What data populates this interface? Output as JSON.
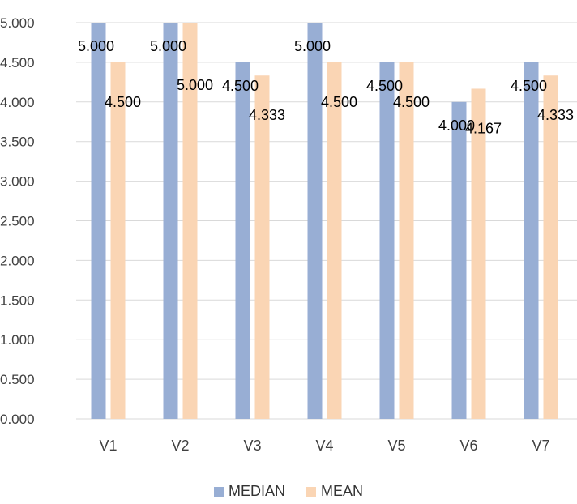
{
  "chart_data": {
    "type": "bar",
    "title": "",
    "xlabel": "",
    "ylabel": "",
    "categories": [
      "V1",
      "V2",
      "V3",
      "V4",
      "V5",
      "V6",
      "V7"
    ],
    "series": [
      {
        "name": "MEDIAN",
        "color": "#98aed4",
        "values": [
          5.0,
          5.0,
          4.5,
          5.0,
          4.5,
          4.0,
          4.5
        ],
        "labels": [
          "5.000",
          "5.000",
          "4.500",
          "5.000",
          "4.500",
          "4.000",
          "4.500"
        ]
      },
      {
        "name": "MEAN",
        "color": "#fad5b4",
        "values": [
          4.5,
          5.0,
          4.333,
          4.5,
          4.5,
          4.167,
          4.333
        ],
        "labels": [
          "4.500",
          "5.000",
          "4.333",
          "4.500",
          "4.500",
          "4.167",
          "4.333"
        ]
      }
    ],
    "ylim": [
      0,
      5
    ],
    "yticks": [
      "0.000",
      "0.500",
      "1.000",
      "1.500",
      "2.000",
      "2.500",
      "3.000",
      "3.500",
      "4.000",
      "4.500",
      "5.000"
    ],
    "grid": true,
    "legend_position": "bottom"
  }
}
